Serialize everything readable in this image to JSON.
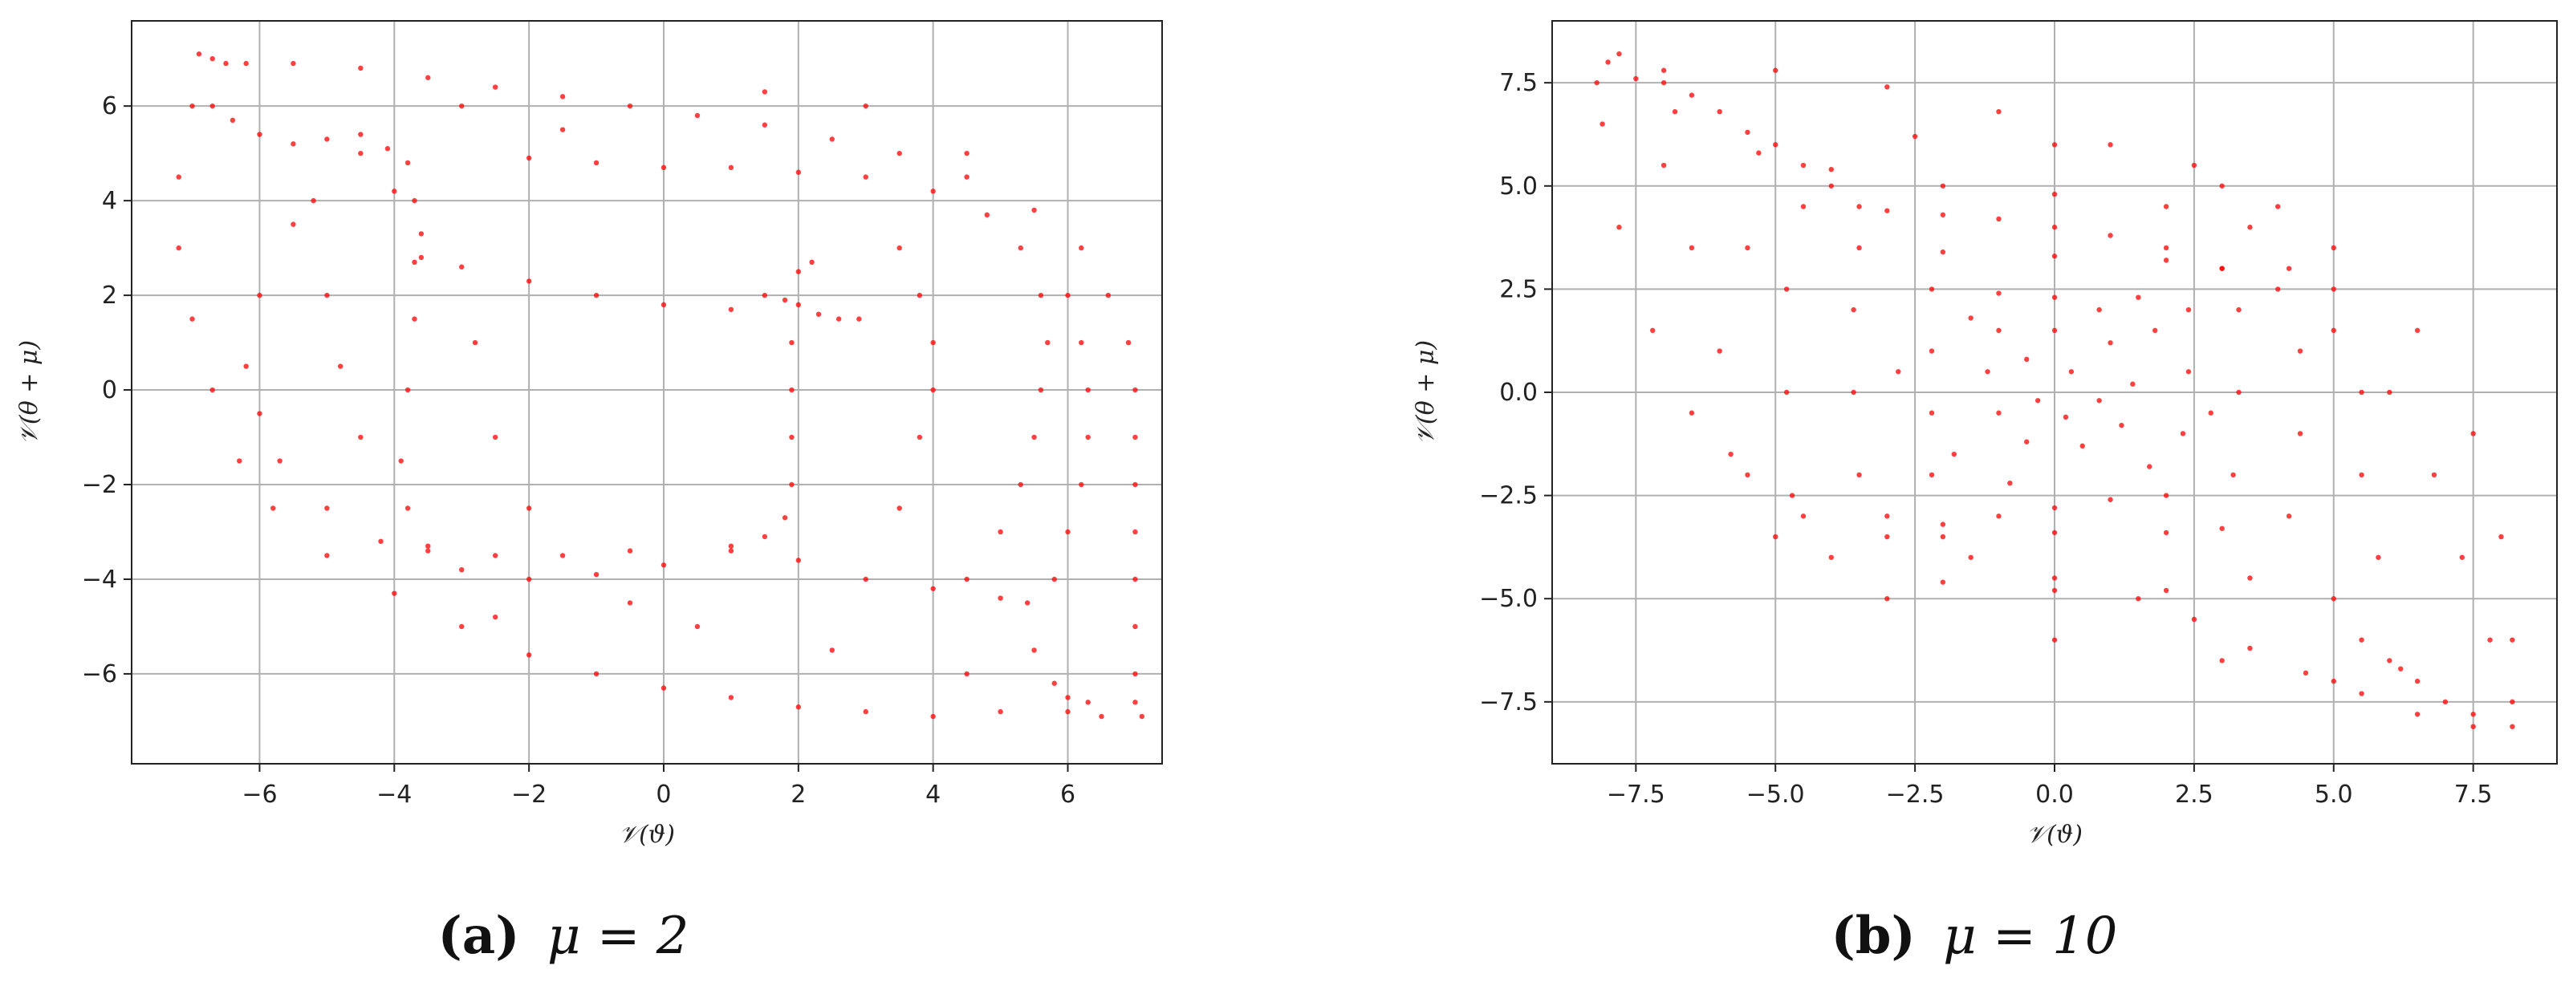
{
  "chart_data": [
    {
      "type": "scatter",
      "xlabel": "𝒱(ϑ)",
      "ylabel": "𝒱(θ + μ)",
      "xlim": [
        -7.9,
        7.4
      ],
      "ylim": [
        -7.9,
        7.8
      ],
      "xticks": [
        -6,
        -4,
        -2,
        0,
        2,
        4,
        6
      ],
      "yticks": [
        -6,
        -4,
        -2,
        0,
        2,
        4,
        6
      ],
      "xtick_labels": [
        "−6",
        "−4",
        "−2",
        "0",
        "2",
        "4",
        "6"
      ],
      "ytick_labels": [
        "−6",
        "−4",
        "−2",
        "0",
        "2",
        "4",
        "6"
      ],
      "grid": true,
      "marker_color": "#ff0000",
      "caption": {
        "letter": "(a)",
        "expr": "μ = 2"
      },
      "points": [
        [
          -6.9,
          7.1
        ],
        [
          -6.7,
          7.0
        ],
        [
          -6.5,
          6.9
        ],
        [
          -6.2,
          6.9
        ],
        [
          -5.5,
          6.9
        ],
        [
          -4.5,
          6.8
        ],
        [
          -3.5,
          6.6
        ],
        [
          -2.5,
          6.4
        ],
        [
          -1.5,
          6.2
        ],
        [
          -0.5,
          6.0
        ],
        [
          0.5,
          5.8
        ],
        [
          1.5,
          5.6
        ],
        [
          2.5,
          5.3
        ],
        [
          3.5,
          5.0
        ],
        [
          4.5,
          4.5
        ],
        [
          5.5,
          3.8
        ],
        [
          6.2,
          3.0
        ],
        [
          6.6,
          2.0
        ],
        [
          6.9,
          1.0
        ],
        [
          7.0,
          0.0
        ],
        [
          7.0,
          -1.0
        ],
        [
          7.0,
          -2.0
        ],
        [
          7.0,
          -3.0
        ],
        [
          7.0,
          -4.0
        ],
        [
          7.0,
          -5.0
        ],
        [
          7.0,
          -6.0
        ],
        [
          7.0,
          -6.6
        ],
        [
          7.1,
          -6.9
        ],
        [
          6.5,
          -6.9
        ],
        [
          6.0,
          -6.8
        ],
        [
          5.0,
          -6.8
        ],
        [
          4.0,
          -6.9
        ],
        [
          3.0,
          -6.8
        ],
        [
          2.0,
          -6.7
        ],
        [
          1.0,
          -6.5
        ],
        [
          0.0,
          -6.3
        ],
        [
          -1.0,
          -6.0
        ],
        [
          -2.0,
          -5.6
        ],
        [
          -3.0,
          -5.0
        ],
        [
          -4.0,
          -4.3
        ],
        [
          -5.0,
          -3.5
        ],
        [
          -5.8,
          -2.5
        ],
        [
          -6.3,
          -1.5
        ],
        [
          -6.7,
          0.0
        ],
        [
          -7.0,
          1.5
        ],
        [
          -7.2,
          3.0
        ],
        [
          -7.2,
          4.5
        ],
        [
          -7.0,
          6.0
        ],
        [
          -6.7,
          6.0
        ],
        [
          -6.4,
          5.7
        ],
        [
          -6.0,
          5.4
        ],
        [
          -5.5,
          5.2
        ],
        [
          -5.0,
          5.3
        ],
        [
          -4.5,
          5.4
        ],
        [
          -4.1,
          5.1
        ],
        [
          -3.8,
          4.8
        ],
        [
          -3.7,
          4.0
        ],
        [
          -3.6,
          3.3
        ],
        [
          -3.6,
          2.8
        ],
        [
          -3.0,
          2.6
        ],
        [
          -2.0,
          2.3
        ],
        [
          -1.0,
          2.0
        ],
        [
          0.0,
          1.8
        ],
        [
          1.0,
          1.7
        ],
        [
          1.5,
          2.0
        ],
        [
          1.8,
          1.9
        ],
        [
          2.0,
          1.8
        ],
        [
          2.3,
          1.6
        ],
        [
          2.6,
          1.5
        ],
        [
          2.9,
          1.5
        ],
        [
          2.2,
          2.7
        ],
        [
          2.0,
          2.5
        ],
        [
          1.9,
          1.0
        ],
        [
          1.9,
          0.0
        ],
        [
          1.9,
          -1.0
        ],
        [
          1.9,
          -2.0
        ],
        [
          1.8,
          -2.7
        ],
        [
          1.5,
          -3.1
        ],
        [
          1.0,
          -3.4
        ],
        [
          0.0,
          -3.7
        ],
        [
          -1.0,
          -3.9
        ],
        [
          -2.0,
          -4.0
        ],
        [
          -3.0,
          -3.8
        ],
        [
          -3.5,
          -3.3
        ],
        [
          -3.8,
          -2.5
        ],
        [
          -3.9,
          -1.5
        ],
        [
          -3.8,
          0.0
        ],
        [
          -3.7,
          1.5
        ],
        [
          -3.7,
          2.7
        ],
        [
          -4.0,
          4.2
        ],
        [
          -4.5,
          5.0
        ],
        [
          -5.5,
          3.5
        ],
        [
          -6.0,
          2.0
        ],
        [
          -6.2,
          0.5
        ],
        [
          -6.0,
          -0.5
        ],
        [
          -5.7,
          -1.5
        ],
        [
          -5.0,
          -2.5
        ],
        [
          -4.2,
          -3.2
        ],
        [
          -3.5,
          -3.4
        ],
        [
          -2.5,
          -3.5
        ],
        [
          -1.5,
          -3.5
        ],
        [
          -0.5,
          -3.4
        ],
        [
          1.0,
          -3.3
        ],
        [
          2.0,
          -3.6
        ],
        [
          3.0,
          -4.0
        ],
        [
          4.0,
          -4.2
        ],
        [
          5.0,
          -4.4
        ],
        [
          5.4,
          -4.5
        ],
        [
          5.5,
          -5.5
        ],
        [
          5.8,
          -6.2
        ],
        [
          6.0,
          -6.5
        ],
        [
          6.3,
          -6.6
        ],
        [
          4.5,
          -4.0
        ],
        [
          5.0,
          -3.0
        ],
        [
          5.3,
          -2.0
        ],
        [
          5.5,
          -1.0
        ],
        [
          5.6,
          0.0
        ],
        [
          5.7,
          1.0
        ],
        [
          5.6,
          2.0
        ],
        [
          5.3,
          3.0
        ],
        [
          4.8,
          3.7
        ],
        [
          4.0,
          4.2
        ],
        [
          3.0,
          4.5
        ],
        [
          2.0,
          4.6
        ],
        [
          1.0,
          4.7
        ],
        [
          0.0,
          4.7
        ],
        [
          -1.0,
          4.8
        ],
        [
          -2.0,
          4.9
        ],
        [
          6.0,
          2.0
        ],
        [
          6.2,
          1.0
        ],
        [
          6.3,
          0.0
        ],
        [
          6.3,
          -1.0
        ],
        [
          6.2,
          -2.0
        ],
        [
          6.0,
          -3.0
        ],
        [
          5.8,
          -4.0
        ],
        [
          3.5,
          -2.5
        ],
        [
          3.8,
          -1.0
        ],
        [
          4.0,
          0.0
        ],
        [
          4.0,
          1.0
        ],
        [
          3.8,
          2.0
        ],
        [
          3.5,
          3.0
        ],
        [
          -2.8,
          1.0
        ],
        [
          -2.5,
          -1.0
        ],
        [
          -2.0,
          -2.5
        ],
        [
          -4.5,
          -1.0
        ],
        [
          -4.8,
          0.5
        ],
        [
          -5.0,
          2.0
        ],
        [
          -5.2,
          4.0
        ],
        [
          0.5,
          -5.0
        ],
        [
          2.5,
          -5.5
        ],
        [
          4.5,
          -6.0
        ],
        [
          -0.5,
          -4.5
        ],
        [
          -2.5,
          -4.8
        ],
        [
          1.5,
          6.3
        ],
        [
          3.0,
          6.0
        ],
        [
          4.5,
          5.0
        ],
        [
          -1.5,
          5.5
        ],
        [
          -3.0,
          6.0
        ]
      ]
    },
    {
      "type": "scatter",
      "xlabel": "𝒱(ϑ)",
      "ylabel": "𝒱(θ + μ)",
      "xlim": [
        -9.0,
        9.0
      ],
      "ylim": [
        -9.0,
        9.0
      ],
      "xticks": [
        -7.5,
        -5.0,
        -2.5,
        0.0,
        2.5,
        5.0,
        7.5
      ],
      "yticks": [
        -7.5,
        -5.0,
        -2.5,
        0.0,
        2.5,
        5.0,
        7.5
      ],
      "xtick_labels": [
        "−7.5",
        "−5.0",
        "−2.5",
        "0.0",
        "2.5",
        "5.0",
        "7.5"
      ],
      "ytick_labels": [
        "−7.5",
        "−5.0",
        "−2.5",
        "0.0",
        "2.5",
        "5.0",
        "7.5"
      ],
      "grid": true,
      "marker_color": "#ff0000",
      "caption": {
        "letter": "(b)",
        "expr": "μ = 10"
      },
      "points": [
        [
          -8.0,
          8.0
        ],
        [
          -7.8,
          8.2
        ],
        [
          -7.5,
          7.6
        ],
        [
          -7.0,
          7.5
        ],
        [
          -6.5,
          7.2
        ],
        [
          -6.0,
          6.8
        ],
        [
          -5.5,
          6.3
        ],
        [
          -5.0,
          6.0
        ],
        [
          -4.5,
          5.5
        ],
        [
          -4.0,
          5.0
        ],
        [
          -3.5,
          4.5
        ],
        [
          -3.0,
          4.4
        ],
        [
          -2.0,
          4.3
        ],
        [
          -1.0,
          4.2
        ],
        [
          0.0,
          4.0
        ],
        [
          1.0,
          3.8
        ],
        [
          2.0,
          3.5
        ],
        [
          3.0,
          3.0
        ],
        [
          4.0,
          2.5
        ],
        [
          5.0,
          1.5
        ],
        [
          6.0,
          0.0
        ],
        [
          6.8,
          -2.0
        ],
        [
          7.3,
          -4.0
        ],
        [
          7.8,
          -6.0
        ],
        [
          8.2,
          -7.5
        ],
        [
          8.2,
          -8.1
        ],
        [
          7.5,
          -8.1
        ],
        [
          6.5,
          -7.8
        ],
        [
          5.5,
          -7.3
        ],
        [
          4.5,
          -6.8
        ],
        [
          3.5,
          -6.2
        ],
        [
          2.5,
          -5.5
        ],
        [
          1.5,
          -5.0
        ],
        [
          0.0,
          -4.5
        ],
        [
          -1.5,
          -4.0
        ],
        [
          -3.0,
          -3.5
        ],
        [
          -4.5,
          -3.0
        ],
        [
          -5.5,
          -2.0
        ],
        [
          -6.5,
          -0.5
        ],
        [
          -7.2,
          1.5
        ],
        [
          -7.8,
          4.0
        ],
        [
          -8.1,
          6.5
        ],
        [
          -8.2,
          7.5
        ],
        [
          -7.0,
          7.8
        ],
        [
          -5.0,
          7.8
        ],
        [
          -3.0,
          7.4
        ],
        [
          -1.0,
          6.8
        ],
        [
          1.0,
          6.0
        ],
        [
          3.0,
          5.0
        ],
        [
          5.0,
          3.5
        ],
        [
          6.5,
          1.5
        ],
        [
          7.5,
          -1.0
        ],
        [
          8.0,
          -3.5
        ],
        [
          8.2,
          -6.0
        ],
        [
          -2.2,
          2.5
        ],
        [
          -2.2,
          1.0
        ],
        [
          -2.2,
          -0.5
        ],
        [
          -2.2,
          -2.0
        ],
        [
          -2.0,
          -3.2
        ],
        [
          -1.0,
          -3.0
        ],
        [
          0.0,
          -2.8
        ],
        [
          1.0,
          -2.6
        ],
        [
          2.0,
          -2.5
        ],
        [
          2.3,
          -1.0
        ],
        [
          2.4,
          0.5
        ],
        [
          2.4,
          2.0
        ],
        [
          1.5,
          2.3
        ],
        [
          0.0,
          2.3
        ],
        [
          -1.0,
          2.4
        ],
        [
          -1.0,
          1.5
        ],
        [
          -1.2,
          0.5
        ],
        [
          -1.0,
          -0.5
        ],
        [
          -0.5,
          -1.2
        ],
        [
          0.5,
          -1.3
        ],
        [
          1.2,
          -0.8
        ],
        [
          1.4,
          0.2
        ],
        [
          1.0,
          1.2
        ],
        [
          0.0,
          1.5
        ],
        [
          -0.5,
          0.8
        ],
        [
          0.3,
          0.5
        ],
        [
          0.8,
          -0.2
        ],
        [
          0.2,
          -0.6
        ],
        [
          -0.3,
          -0.2
        ],
        [
          -3.5,
          3.5
        ],
        [
          -3.6,
          2.0
        ],
        [
          -3.6,
          0.0
        ],
        [
          -3.5,
          -2.0
        ],
        [
          -3.0,
          -3.0
        ],
        [
          -2.0,
          -3.5
        ],
        [
          0.0,
          -3.4
        ],
        [
          2.0,
          -3.4
        ],
        [
          3.0,
          -3.3
        ],
        [
          3.2,
          -2.0
        ],
        [
          3.3,
          0.0
        ],
        [
          3.3,
          2.0
        ],
        [
          3.0,
          3.0
        ],
        [
          2.0,
          3.2
        ],
        [
          0.0,
          3.3
        ],
        [
          -2.0,
          3.4
        ],
        [
          -4.5,
          4.5
        ],
        [
          -4.8,
          2.5
        ],
        [
          -4.8,
          0.0
        ],
        [
          -4.7,
          -2.5
        ],
        [
          -4.0,
          -4.0
        ],
        [
          -2.0,
          -4.6
        ],
        [
          0.0,
          -4.8
        ],
        [
          2.0,
          -4.8
        ],
        [
          3.5,
          -4.5
        ],
        [
          4.2,
          -3.0
        ],
        [
          4.4,
          -1.0
        ],
        [
          4.4,
          1.0
        ],
        [
          4.2,
          3.0
        ],
        [
          3.5,
          4.0
        ],
        [
          2.0,
          4.5
        ],
        [
          0.0,
          4.8
        ],
        [
          -2.0,
          5.0
        ],
        [
          -4.0,
          5.4
        ],
        [
          -5.3,
          5.8
        ],
        [
          5.0,
          -5.0
        ],
        [
          5.5,
          -6.0
        ],
        [
          6.0,
          -6.5
        ],
        [
          6.5,
          -7.0
        ],
        [
          7.0,
          -7.5
        ],
        [
          7.5,
          -7.8
        ],
        [
          6.2,
          -6.7
        ],
        [
          5.8,
          -4.0
        ],
        [
          5.5,
          -2.0
        ],
        [
          5.5,
          0.0
        ],
        [
          5.0,
          2.5
        ],
        [
          4.0,
          4.5
        ],
        [
          2.5,
          5.5
        ],
        [
          0.0,
          6.0
        ],
        [
          -2.5,
          6.2
        ],
        [
          -5.5,
          3.5
        ],
        [
          -6.0,
          1.0
        ],
        [
          -5.8,
          -1.5
        ],
        [
          -5.0,
          -3.5
        ],
        [
          -3.0,
          -5.0
        ],
        [
          0.0,
          -6.0
        ],
        [
          3.0,
          -6.5
        ],
        [
          5.0,
          -7.0
        ],
        [
          -6.5,
          3.5
        ],
        [
          -7.0,
          5.5
        ],
        [
          -6.8,
          6.8
        ],
        [
          -1.8,
          -1.5
        ],
        [
          -1.5,
          1.8
        ],
        [
          1.8,
          1.5
        ],
        [
          1.7,
          -1.8
        ],
        [
          -0.8,
          -2.2
        ],
        [
          0.8,
          2.0
        ],
        [
          -2.8,
          0.5
        ],
        [
          2.8,
          -0.5
        ]
      ]
    }
  ]
}
